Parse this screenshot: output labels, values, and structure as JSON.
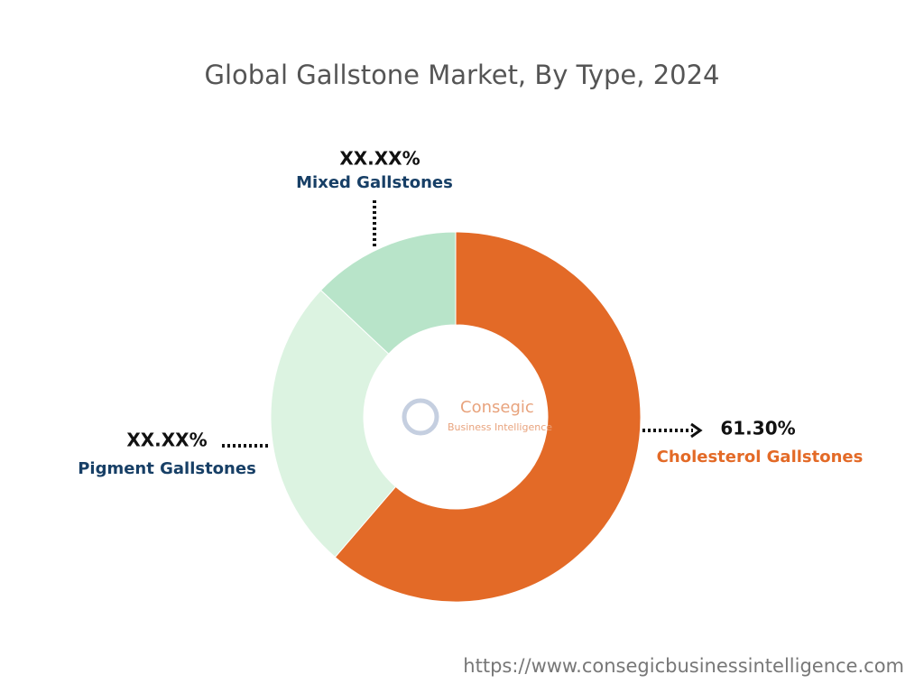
{
  "chart_data": {
    "type": "donut",
    "title": "Global Gallstone Market, By Type, 2024",
    "categories": [
      "Cholesterol Gallstones",
      "Pigment Gallstones",
      "Mixed Gallstones"
    ],
    "values": [
      61.3,
      25.7,
      13
    ],
    "value_labels": [
      "61.30%",
      "XX.XX%",
      "XX.XX%"
    ],
    "colors": [
      "#e36a27",
      "#dcf3e1",
      "#b8e4c9"
    ],
    "watermark": [
      "Consegic",
      "Business Intelligence"
    ],
    "source": "https://www.consegicbusinessintelligence.com"
  }
}
